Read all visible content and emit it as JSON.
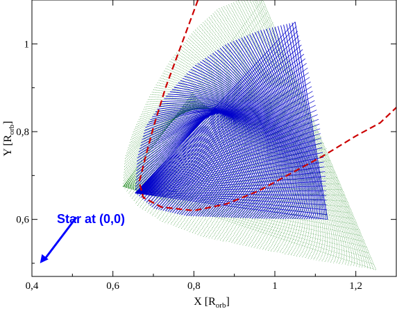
{
  "chart_data": {
    "type": "line",
    "xlim": [
      0.4,
      1.3
    ],
    "ylim": [
      0.47,
      1.1
    ],
    "x_ticks": [
      0.4,
      0.6,
      0.8,
      1.0,
      1.2
    ],
    "x_tick_labels": [
      "0,4",
      "0,6",
      "0,8",
      "1",
      "1,2"
    ],
    "y_ticks": [
      0.6,
      0.8,
      1.0
    ],
    "y_tick_labels": [
      "0,6",
      "0,8",
      "1"
    ],
    "xlabel_main": "X [R",
    "xlabel_sub": "orb",
    "xlabel_end": "]",
    "ylabel_main": "Y [R",
    "ylabel_sub": "orb",
    "ylabel_end": "]",
    "grid": false,
    "series": [
      {
        "kind": "fan",
        "color": "#228b22",
        "vertex": [
          0.625,
          0.675
        ],
        "upper_edge": [
          [
            0.625,
            0.675
          ],
          [
            0.63,
            0.74
          ],
          [
            0.65,
            0.8
          ],
          [
            0.69,
            0.88
          ],
          [
            0.74,
            0.96
          ],
          [
            0.8,
            1.03
          ],
          [
            0.86,
            1.08
          ],
          [
            0.94,
            1.11
          ],
          [
            0.97,
            1.1
          ]
        ],
        "lower_edge": [
          [
            0.625,
            0.675
          ],
          [
            0.66,
            0.63
          ],
          [
            0.72,
            0.595
          ],
          [
            0.82,
            0.56
          ],
          [
            0.95,
            0.535
          ],
          [
            1.08,
            0.51
          ],
          [
            1.25,
            0.485
          ]
        ],
        "far_edge": [
          [
            0.97,
            1.1
          ],
          [
            1.04,
            0.96
          ],
          [
            1.12,
            0.78
          ],
          [
            1.19,
            0.61
          ],
          [
            1.25,
            0.485
          ]
        ],
        "line_count": 95
      },
      {
        "kind": "fan",
        "color": "#0000cc",
        "vertex": [
          0.655,
          0.66
        ],
        "upper_edge": [
          [
            0.655,
            0.66
          ],
          [
            0.66,
            0.74
          ],
          [
            0.68,
            0.81
          ],
          [
            0.73,
            0.88
          ],
          [
            0.8,
            0.95
          ],
          [
            0.88,
            1.0
          ],
          [
            0.96,
            1.03
          ],
          [
            1.05,
            1.05
          ]
        ],
        "lower_edge": [
          [
            0.655,
            0.66
          ],
          [
            0.7,
            0.625
          ],
          [
            0.78,
            0.608
          ],
          [
            0.95,
            0.602
          ],
          [
            1.13,
            0.6
          ]
        ],
        "far_edge": [
          [
            1.05,
            1.05
          ],
          [
            1.08,
            0.95
          ],
          [
            1.11,
            0.82
          ],
          [
            1.125,
            0.7
          ],
          [
            1.13,
            0.6
          ]
        ],
        "line_count": 85
      },
      {
        "kind": "dashed-curve",
        "color": "#cc0000",
        "points": [
          [
            0.81,
            1.1
          ],
          [
            0.77,
            1.0
          ],
          [
            0.73,
            0.9
          ],
          [
            0.7,
            0.81
          ],
          [
            0.68,
            0.74
          ],
          [
            0.665,
            0.685
          ],
          [
            0.675,
            0.65
          ],
          [
            0.72,
            0.628
          ],
          [
            0.8,
            0.62
          ],
          [
            0.88,
            0.635
          ],
          [
            0.96,
            0.665
          ],
          [
            1.04,
            0.705
          ],
          [
            1.12,
            0.745
          ],
          [
            1.2,
            0.79
          ],
          [
            1.26,
            0.82
          ],
          [
            1.3,
            0.855
          ]
        ]
      }
    ],
    "annotation": {
      "text": "Star at (0,0)",
      "color": "#0000ff",
      "arrow_from": [
        0.51,
        0.605
      ],
      "arrow_to": [
        0.42,
        0.5
      ]
    }
  }
}
